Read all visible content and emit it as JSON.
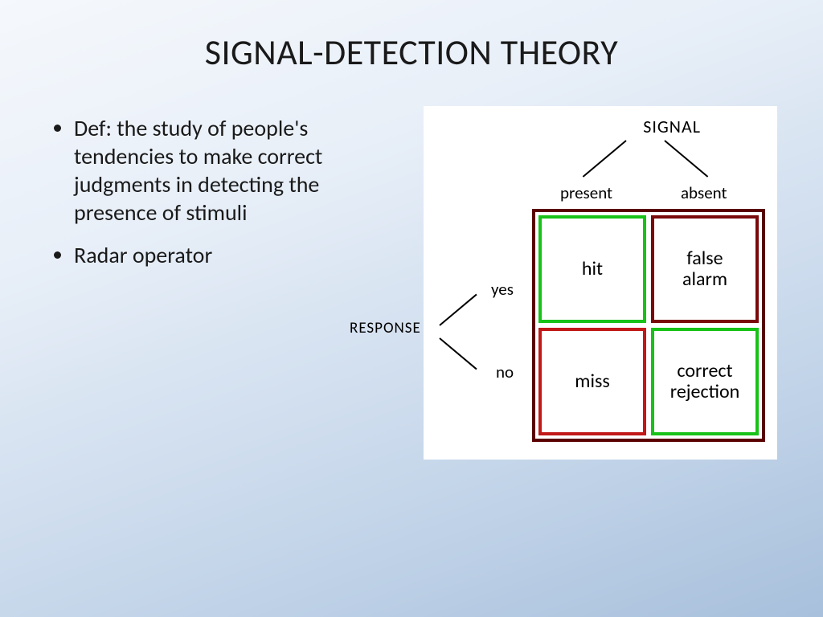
{
  "title": "SIGNAL-DETECTION THEORY",
  "bullets": [
    "Def: the study of people's tendencies to make correct judgments in detecting the presence of stimuli",
    "Radar operator"
  ],
  "diagram": {
    "type": "matrix-tree",
    "background_color": "#ffffff",
    "outer_border_color": "#5a0000",
    "colors": {
      "correct": "#18c218",
      "incorrect_dark": "#7a0a0a",
      "incorrect_bright": "#c21818"
    },
    "top_label": "SIGNAL",
    "columns": [
      "present",
      "absent"
    ],
    "side_label": "RESPONSE",
    "rows": [
      "yes",
      "no"
    ],
    "cells": {
      "hit": "hit",
      "false_alarm": "false\nalarm",
      "miss": "miss",
      "correct_rejection": "correct\nrejection"
    },
    "font_sizes": {
      "root_label": 22,
      "branch_label": 21,
      "cell": 24
    }
  }
}
